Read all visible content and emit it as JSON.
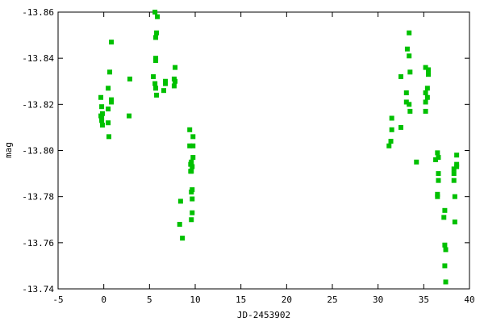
{
  "chart_data": {
    "type": "scatter",
    "title": "",
    "xlabel": "JD-2453902",
    "ylabel": "mag",
    "xlim": [
      -5,
      40
    ],
    "ylim": [
      -13.74,
      -13.86
    ],
    "y_inverted": true,
    "grid": false,
    "xticks": [
      "-5",
      "0",
      "5",
      "10",
      "15",
      "20",
      "25",
      "30",
      "35",
      "40"
    ],
    "yticks": [
      "-13.86",
      "-13.84",
      "-13.82",
      "-13.80",
      "-13.78",
      "-13.76",
      "-13.74"
    ],
    "marker_color": "#00c000",
    "points": [
      [
        0.83,
        -13.847
      ],
      [
        0.65,
        -13.834
      ],
      [
        0.48,
        -13.827
      ],
      [
        -0.32,
        -13.823
      ],
      [
        0.83,
        -13.822
      ],
      [
        0.83,
        -13.821
      ],
      [
        -0.23,
        -13.819
      ],
      [
        0.48,
        -13.818
      ],
      [
        -0.15,
        -13.816
      ],
      [
        -0.32,
        -13.815
      ],
      [
        -0.23,
        -13.814
      ],
      [
        -0.23,
        -13.813
      ],
      [
        0.48,
        -13.812
      ],
      [
        -0.15,
        -13.811
      ],
      [
        0.56,
        -13.806
      ],
      [
        2.85,
        -13.831
      ],
      [
        2.77,
        -13.815
      ],
      [
        5.6,
        -13.86
      ],
      [
        5.86,
        -13.858
      ],
      [
        5.77,
        -13.851
      ],
      [
        5.68,
        -13.849
      ],
      [
        5.68,
        -13.84
      ],
      [
        5.68,
        -13.839
      ],
      [
        5.42,
        -13.832
      ],
      [
        5.6,
        -13.829
      ],
      [
        5.68,
        -13.827
      ],
      [
        5.77,
        -13.824
      ],
      [
        6.74,
        -13.83
      ],
      [
        6.74,
        -13.829
      ],
      [
        6.56,
        -13.826
      ],
      [
        7.8,
        -13.836
      ],
      [
        7.7,
        -13.831
      ],
      [
        7.8,
        -13.83
      ],
      [
        7.7,
        -13.828
      ],
      [
        9.4,
        -13.809
      ],
      [
        9.76,
        -13.806
      ],
      [
        9.4,
        -13.802
      ],
      [
        9.76,
        -13.802
      ],
      [
        9.76,
        -13.797
      ],
      [
        9.58,
        -13.795
      ],
      [
        9.5,
        -13.794
      ],
      [
        9.67,
        -13.793
      ],
      [
        9.5,
        -13.791
      ],
      [
        9.58,
        -13.791
      ],
      [
        9.67,
        -13.783
      ],
      [
        9.58,
        -13.782
      ],
      [
        9.67,
        -13.779
      ],
      [
        8.4,
        -13.778
      ],
      [
        9.67,
        -13.773
      ],
      [
        9.58,
        -13.77
      ],
      [
        8.3,
        -13.768
      ],
      [
        8.6,
        -13.762
      ],
      [
        33.4,
        -13.851
      ],
      [
        33.2,
        -13.844
      ],
      [
        33.4,
        -13.841
      ],
      [
        35.2,
        -13.836
      ],
      [
        35.5,
        -13.835
      ],
      [
        33.5,
        -13.834
      ],
      [
        32.5,
        -13.832
      ],
      [
        35.5,
        -13.833
      ],
      [
        35.4,
        -13.827
      ],
      [
        33.1,
        -13.825
      ],
      [
        35.2,
        -13.825
      ],
      [
        35.4,
        -13.823
      ],
      [
        33.1,
        -13.821
      ],
      [
        35.2,
        -13.821
      ],
      [
        33.4,
        -13.82
      ],
      [
        33.5,
        -13.817
      ],
      [
        35.2,
        -13.817
      ],
      [
        31.5,
        -13.814
      ],
      [
        31.5,
        -13.809
      ],
      [
        32.5,
        -13.81
      ],
      [
        31.4,
        -13.804
      ],
      [
        31.2,
        -13.802
      ],
      [
        36.5,
        -13.799
      ],
      [
        36.6,
        -13.797
      ],
      [
        36.3,
        -13.796
      ],
      [
        38.6,
        -13.798
      ],
      [
        34.2,
        -13.795
      ],
      [
        38.6,
        -13.794
      ],
      [
        38.6,
        -13.793
      ],
      [
        38.3,
        -13.792
      ],
      [
        36.6,
        -13.79
      ],
      [
        38.3,
        -13.79
      ],
      [
        36.6,
        -13.787
      ],
      [
        38.3,
        -13.787
      ],
      [
        36.5,
        -13.781
      ],
      [
        36.5,
        -13.78
      ],
      [
        38.4,
        -13.78
      ],
      [
        37.3,
        -13.774
      ],
      [
        37.2,
        -13.771
      ],
      [
        38.4,
        -13.769
      ],
      [
        37.3,
        -13.759
      ],
      [
        37.4,
        -13.757
      ],
      [
        37.3,
        -13.75
      ],
      [
        37.4,
        -13.743
      ]
    ]
  }
}
